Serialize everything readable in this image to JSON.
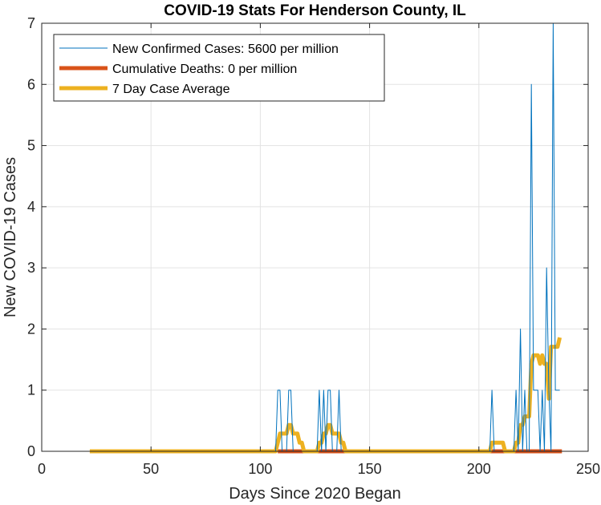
{
  "chart_data": {
    "type": "line",
    "title": "COVID-19 Stats For Henderson County, IL",
    "xlabel": "Days Since 2020 Began",
    "ylabel": "New COVID-19 Cases",
    "xlim": [
      0,
      250
    ],
    "ylim": [
      0,
      7
    ],
    "xticks": [
      0,
      50,
      100,
      150,
      200,
      250
    ],
    "yticks": [
      0,
      1,
      2,
      3,
      4,
      5,
      6,
      7
    ],
    "grid": true,
    "legend_position": "top-left",
    "series": [
      {
        "name": "New Confirmed Cases: 5600 per million",
        "color": "#0072BD",
        "x": [
          22,
          107,
          108,
          109,
          110,
          111,
          112,
          113,
          114,
          115,
          116,
          117,
          118,
          119,
          120,
          121,
          122,
          123,
          124,
          125,
          126,
          127,
          128,
          129,
          130,
          131,
          132,
          133,
          134,
          135,
          136,
          137,
          138,
          139,
          140,
          141,
          142,
          143,
          144,
          205,
          206,
          207,
          208,
          209,
          210,
          211,
          212,
          213,
          214,
          215,
          216,
          217,
          218,
          219,
          220,
          221,
          222,
          223,
          224,
          225,
          226,
          227,
          228,
          229,
          230,
          231,
          232,
          233,
          234,
          235,
          236,
          237
        ],
        "y": [
          0,
          0,
          1,
          1,
          0,
          0,
          0,
          1,
          1,
          0,
          0,
          0,
          0,
          0,
          0,
          0,
          0,
          0,
          0,
          0,
          0,
          1,
          0,
          1,
          0,
          1,
          1,
          0,
          0,
          0,
          1,
          0,
          0,
          0,
          0,
          0,
          0,
          0,
          0,
          0,
          1,
          0,
          0,
          0,
          0,
          0,
          0,
          0,
          0,
          0,
          0,
          1,
          0,
          2,
          0,
          1,
          0,
          0,
          6,
          1,
          1,
          1,
          0,
          1,
          0,
          3,
          1,
          0,
          7,
          1,
          1,
          1
        ]
      },
      {
        "name": "Cumulative Deaths: 0 per million",
        "color": "#D95319",
        "x": [
          108,
          238
        ],
        "y": [
          0,
          0
        ]
      },
      {
        "name": "7 Day Case Average",
        "color": "#EDB120",
        "x": [
          22,
          107,
          108,
          109,
          110,
          111,
          112,
          113,
          114,
          115,
          116,
          117,
          118,
          119,
          120,
          121,
          122,
          123,
          124,
          125,
          126,
          127,
          128,
          129,
          130,
          131,
          132,
          133,
          134,
          135,
          136,
          137,
          138,
          139,
          140,
          141,
          142,
          143,
          144,
          205,
          206,
          207,
          208,
          209,
          210,
          211,
          212,
          213,
          214,
          215,
          216,
          217,
          218,
          219,
          220,
          221,
          222,
          223,
          224,
          225,
          226,
          227,
          228,
          229,
          230,
          231,
          232,
          233,
          234,
          235,
          236,
          237
        ],
        "y": [
          0,
          0,
          0.14,
          0.29,
          0.29,
          0.29,
          0.29,
          0.43,
          0.43,
          0.29,
          0.29,
          0.29,
          0.14,
          0.14,
          0,
          0,
          0,
          0,
          0,
          0,
          0,
          0.14,
          0.14,
          0.29,
          0.29,
          0.43,
          0.43,
          0.29,
          0.29,
          0.29,
          0.29,
          0.14,
          0.14,
          0,
          0,
          0,
          0,
          0,
          0,
          0,
          0.14,
          0.14,
          0.14,
          0.14,
          0.14,
          0.14,
          0,
          0,
          0,
          0,
          0,
          0.14,
          0.14,
          0.43,
          0.43,
          0.57,
          0.57,
          0.57,
          1.43,
          1.57,
          1.57,
          1.57,
          1.43,
          1.57,
          1.43,
          1.43,
          0.86,
          1.71,
          1.71,
          1.71,
          1.71,
          1.86
        ]
      }
    ]
  }
}
